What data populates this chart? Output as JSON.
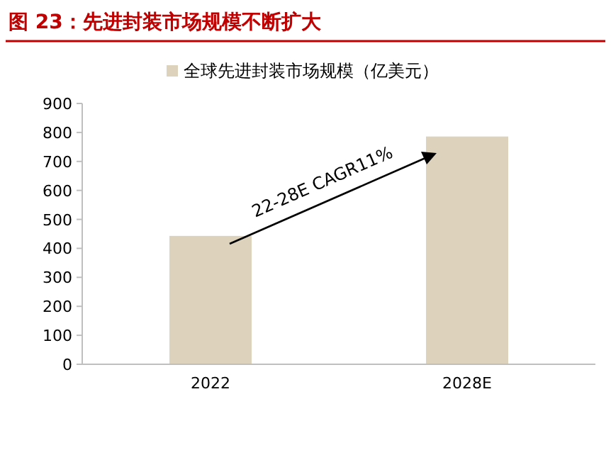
{
  "chart_data": {
    "type": "bar",
    "title": "图 23：先进封装市场规模不断扩大",
    "categories": [
      "2022",
      "2028E"
    ],
    "series": [
      {
        "name": "全球先进封装市场规模（亿美元）",
        "color": "#ddd3bd",
        "values": [
          443,
          786
        ]
      }
    ],
    "ylim": [
      0,
      900
    ],
    "yticks": [
      0,
      100,
      200,
      300,
      400,
      500,
      600,
      700,
      800,
      900
    ],
    "legend": "top",
    "grid": false,
    "annotations": [
      "22-28E CAGR11%"
    ]
  }
}
